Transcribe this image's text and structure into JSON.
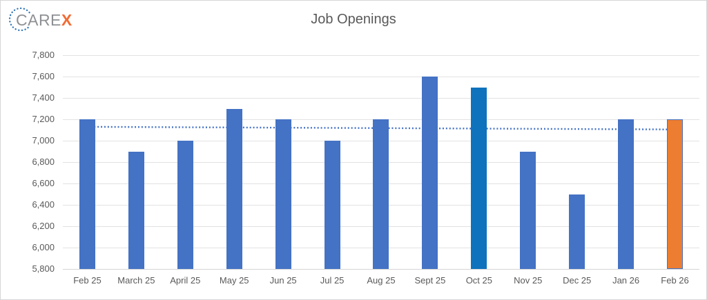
{
  "logo": {
    "text_gray": "CARE",
    "text_accent": "X",
    "gray_color": "#8e9093",
    "accent_color": "#f26b33",
    "ring_color": "#2e75b6",
    "ring_icon": "dotted-circle"
  },
  "chart_data": {
    "type": "bar",
    "title": "Job Openings",
    "categories": [
      "Feb 25",
      "March 25",
      "April 25",
      "May 25",
      "Jun 25",
      "Jul 25",
      "Aug 25",
      "Sept 25",
      "Oct 25",
      "Nov 25",
      "Dec 25",
      "Jan 26",
      "Feb 26"
    ],
    "values": [
      7200,
      6900,
      7000,
      7300,
      7200,
      7000,
      7200,
      7600,
      7500,
      6900,
      6500,
      7200,
      7200
    ],
    "ylim": [
      5800,
      7800
    ],
    "ytick_step": 200,
    "ytick_labels": [
      "7,800",
      "7,600",
      "7,400",
      "7,200",
      "7,000",
      "6,800",
      "6,600",
      "6,400",
      "6,200",
      "6,000",
      "5,800"
    ],
    "grid": true,
    "legend": "none",
    "xlabel": "",
    "ylabel": "",
    "bar_default_color": "#4472c4",
    "highlight_bars": [
      {
        "index": 8,
        "color": "#0e72bd"
      },
      {
        "index": 12,
        "color": "#ed7d31",
        "border_color": "#4472c4"
      }
    ],
    "gridline_color": "#e2e2e2",
    "label_color": "#595959",
    "trendline": {
      "style": "dotted",
      "color": "#4472c4",
      "start_value": 7130,
      "end_value": 7105
    }
  }
}
